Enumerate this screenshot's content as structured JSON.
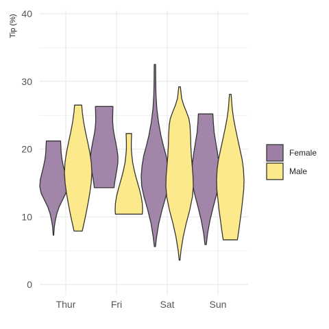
{
  "chart_data": {
    "type": "violin",
    "title": "",
    "xlabel": "",
    "ylabel": "Tip (%)",
    "ylim": [
      0,
      40
    ],
    "yticks": [
      0,
      10,
      20,
      30,
      40
    ],
    "grid": true,
    "legend_position": "right",
    "categories": [
      "Thur",
      "Fri",
      "Sat",
      "Sun"
    ],
    "series": [
      {
        "name": "Female",
        "color": "#9d7fa5",
        "violins": [
          {
            "category": "Thur",
            "profile": [
              [
                7.3,
                0.02
              ],
              [
                8.5,
                0.06
              ],
              [
                9.5,
                0.14
              ],
              [
                10.5,
                0.25
              ],
              [
                11.5,
                0.42
              ],
              [
                12.5,
                0.66
              ],
              [
                13.5,
                0.9
              ],
              [
                14.5,
                1.0
              ],
              [
                15.5,
                0.96
              ],
              [
                16.5,
                0.84
              ],
              [
                17.5,
                0.72
              ],
              [
                18.5,
                0.62
              ],
              [
                19.5,
                0.56
              ],
              [
                20.5,
                0.54
              ],
              [
                21.2,
                0.52
              ]
            ]
          },
          {
            "category": "Fri",
            "profile": [
              [
                14.3,
                0.72
              ],
              [
                15.0,
                0.76
              ],
              [
                16.0,
                0.84
              ],
              [
                17.0,
                0.93
              ],
              [
                18.0,
                1.0
              ],
              [
                19.0,
                1.0
              ],
              [
                20.0,
                0.93
              ],
              [
                21.0,
                0.84
              ],
              [
                22.0,
                0.74
              ],
              [
                23.0,
                0.66
              ],
              [
                24.0,
                0.62
              ],
              [
                25.0,
                0.62
              ],
              [
                26.3,
                0.64
              ]
            ]
          },
          {
            "category": "Sat",
            "profile": [
              [
                5.6,
                0.04
              ],
              [
                7.0,
                0.12
              ],
              [
                9.0,
                0.28
              ],
              [
                11.0,
                0.52
              ],
              [
                13.0,
                0.8
              ],
              [
                14.5,
                0.96
              ],
              [
                16.0,
                1.0
              ],
              [
                17.5,
                0.94
              ],
              [
                19.0,
                0.82
              ],
              [
                20.5,
                0.62
              ],
              [
                22.0,
                0.44
              ],
              [
                24.0,
                0.26
              ],
              [
                26.0,
                0.14
              ],
              [
                28.0,
                0.08
              ],
              [
                30.0,
                0.06
              ],
              [
                32.5,
                0.05
              ]
            ]
          },
          {
            "category": "Sun",
            "profile": [
              [
                5.9,
                0.05
              ],
              [
                7.5,
                0.14
              ],
              [
                9.5,
                0.32
              ],
              [
                11.5,
                0.56
              ],
              [
                13.5,
                0.82
              ],
              [
                15.0,
                0.96
              ],
              [
                16.5,
                1.0
              ],
              [
                18.0,
                0.96
              ],
              [
                19.5,
                0.86
              ],
              [
                21.0,
                0.74
              ],
              [
                22.5,
                0.62
              ],
              [
                24.0,
                0.56
              ],
              [
                25.2,
                0.53
              ]
            ]
          }
        ]
      },
      {
        "name": "Male",
        "color": "#fbe98b",
        "violins": [
          {
            "category": "Thur",
            "profile": [
              [
                7.9,
                0.3
              ],
              [
                9.0,
                0.42
              ],
              [
                10.5,
                0.58
              ],
              [
                12.0,
                0.72
              ],
              [
                13.5,
                0.85
              ],
              [
                15.0,
                0.95
              ],
              [
                16.5,
                1.0
              ],
              [
                18.0,
                0.96
              ],
              [
                19.5,
                0.85
              ],
              [
                21.0,
                0.7
              ],
              [
                22.5,
                0.54
              ],
              [
                24.0,
                0.4
              ],
              [
                25.5,
                0.3
              ],
              [
                26.5,
                0.26
              ]
            ]
          },
          {
            "category": "Fri",
            "profile": [
              [
                10.4,
                0.98
              ],
              [
                11.0,
                1.0
              ],
              [
                12.0,
                0.98
              ],
              [
                13.0,
                0.9
              ],
              [
                14.0,
                0.78
              ],
              [
                15.0,
                0.64
              ],
              [
                16.0,
                0.5
              ],
              [
                17.0,
                0.38
              ],
              [
                18.0,
                0.28
              ],
              [
                19.0,
                0.22
              ],
              [
                20.0,
                0.18
              ],
              [
                21.0,
                0.18
              ],
              [
                22.3,
                0.2
              ]
            ]
          },
          {
            "category": "Sat",
            "profile": [
              [
                3.6,
                0.03
              ],
              [
                5.0,
                0.1
              ],
              [
                7.0,
                0.26
              ],
              [
                9.0,
                0.48
              ],
              [
                11.0,
                0.74
              ],
              [
                13.0,
                0.94
              ],
              [
                14.5,
                1.0
              ],
              [
                16.0,
                0.98
              ],
              [
                17.5,
                0.92
              ],
              [
                19.0,
                0.86
              ],
              [
                20.5,
                0.82
              ],
              [
                22.0,
                0.8
              ],
              [
                23.5,
                0.76
              ],
              [
                24.5,
                0.68
              ],
              [
                25.5,
                0.5
              ],
              [
                26.5,
                0.3
              ],
              [
                27.5,
                0.15
              ],
              [
                29.2,
                0.06
              ]
            ]
          },
          {
            "category": "Sun",
            "profile": [
              [
                6.6,
                0.52
              ],
              [
                8.0,
                0.62
              ],
              [
                9.5,
                0.72
              ],
              [
                11.0,
                0.82
              ],
              [
                12.5,
                0.9
              ],
              [
                14.0,
                0.98
              ],
              [
                15.5,
                1.0
              ],
              [
                17.0,
                0.96
              ],
              [
                18.5,
                0.86
              ],
              [
                20.0,
                0.7
              ],
              [
                21.5,
                0.54
              ],
              [
                23.0,
                0.38
              ],
              [
                24.5,
                0.24
              ],
              [
                26.0,
                0.14
              ],
              [
                28.1,
                0.06
              ]
            ]
          }
        ]
      }
    ]
  }
}
